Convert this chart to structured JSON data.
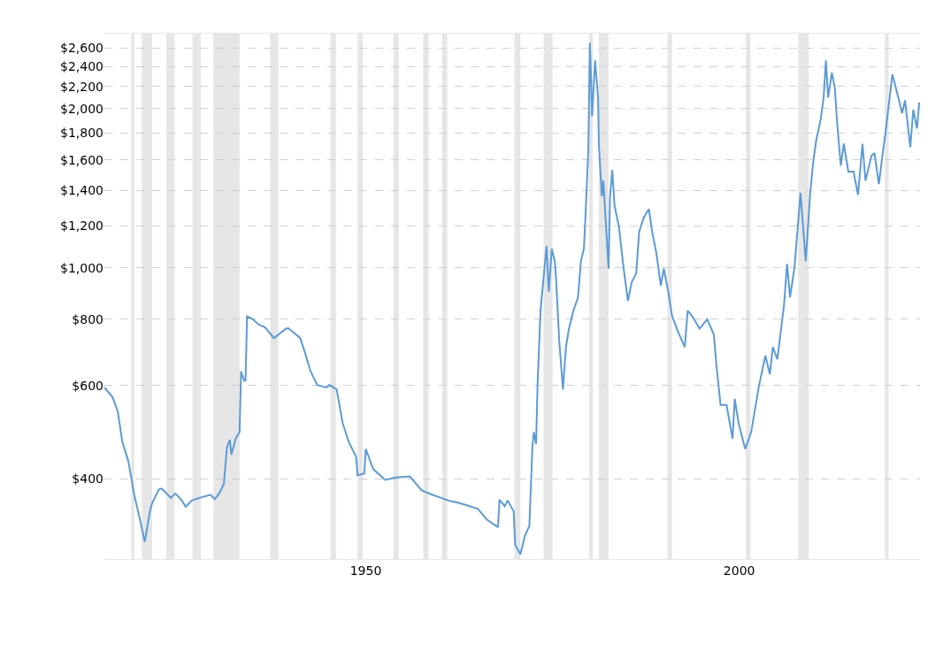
{
  "chart_data": {
    "type": "line",
    "x": [
      1915.0,
      1916.1,
      1916.8,
      1917.4,
      1918.2,
      1919.0,
      1919.8,
      1920.4,
      1921.1,
      1921.4,
      1922.3,
      1922.7,
      1923.9,
      1924.5,
      1925.3,
      1925.9,
      1926.7,
      1928.0,
      1929.2,
      1929.8,
      1930.4,
      1931.0,
      1931.4,
      1931.8,
      1932.0,
      1932.6,
      1933.1,
      1933.3,
      1933.7,
      1933.9,
      1934.1,
      1934.9,
      1935.7,
      1936.5,
      1937.7,
      1939.2,
      1939.6,
      1941.2,
      1941.8,
      1942.6,
      1943.5,
      1944.7,
      1945.1,
      1946.1,
      1946.9,
      1947.7,
      1948.7,
      1948.9,
      1949.8,
      1950.0,
      1951.0,
      1952.6,
      1954.0,
      1955.9,
      1957.5,
      1958.9,
      1961.3,
      1962.5,
      1965.0,
      1966.2,
      1967.7,
      1967.9,
      1968.6,
      1969.0,
      1969.8,
      1970.0,
      1970.7,
      1971.3,
      1971.9,
      1972.3,
      1972.5,
      1972.8,
      1973.0,
      1973.4,
      1974.2,
      1974.5,
      1974.9,
      1975.3,
      1975.5,
      1975.9,
      1976.4,
      1976.8,
      1977.2,
      1977.8,
      1978.4,
      1978.8,
      1979.2,
      1979.4,
      1979.8,
      1980.0,
      1980.3,
      1980.7,
      1981.1,
      1981.2,
      1981.6,
      1981.8,
      1982.1,
      1982.5,
      1982.7,
      1983.0,
      1983.3,
      1983.9,
      1984.5,
      1985.1,
      1985.6,
      1986.2,
      1986.6,
      1987.2,
      1987.9,
      1988.3,
      1988.9,
      1989.5,
      1989.9,
      1990.5,
      1991.0,
      1991.8,
      1992.7,
      1993.1,
      1993.7,
      1994.7,
      1995.7,
      1996.6,
      1996.9,
      1997.5,
      1998.3,
      1999.1,
      1999.4,
      1999.9,
      2000.8,
      2001.6,
      2002.6,
      2003.5,
      2004.1,
      2004.5,
      2005.1,
      2006.0,
      2006.4,
      2006.8,
      2007.4,
      2008.2,
      2008.9,
      2009.5,
      2009.9,
      2010.3,
      2010.9,
      2011.3,
      2011.6,
      2011.9,
      2012.4,
      2012.8,
      2013.1,
      2013.6,
      2014.0,
      2014.6,
      2015.3,
      2015.9,
      2016.5,
      2016.9,
      2017.7,
      2018.1,
      2018.7,
      2019.1,
      2019.6,
      2020.5,
      2021.2,
      2021.8,
      2022.2,
      2022.9,
      2023.3,
      2023.8,
      2024.1
    ],
    "series": [
      {
        "color": "#5b9bd5",
        "values": [
          595,
          570,
          535,
          470,
          432,
          373,
          333,
          304,
          347,
          360,
          382,
          383,
          368,
          375,
          365,
          354,
          364,
          369,
          373,
          366,
          376,
          391,
          458,
          474,
          444,
          477,
          490,
          638,
          613,
          613,
          810,
          800,
          781,
          773,
          737,
          766,
          770,
          738,
          696,
          638,
          601,
          595,
          601,
          590,
          510,
          470,
          440,
          406,
          409,
          455,
          417,
          398,
          402,
          404,
          380,
          373,
          363,
          360,
          351,
          335,
          324,
          365,
          355,
          364,
          347,
          300,
          288,
          312,
          326,
          458,
          490,
          465,
          605,
          833,
          1100,
          902,
          1087,
          1030,
          940,
          729,
          590,
          709,
          768,
          831,
          878,
          1030,
          1087,
          1244,
          1673,
          2660,
          1935,
          2465,
          2097,
          1716,
          1366,
          1462,
          1244,
          997,
          1366,
          1531,
          1312,
          1195,
          1003,
          867,
          940,
          976,
          1171,
          1244,
          1292,
          1179,
          1067,
          926,
          997,
          902,
          812,
          758,
          709,
          831,
          811,
          768,
          800,
          749,
          665,
          551,
          551,
          476,
          566,
          510,
          455,
          490,
          595,
          683,
          630,
          709,
          672,
          852,
          1018,
          880,
          1003,
          1386,
          1030,
          1386,
          1585,
          1739,
          1908,
          2097,
          2465,
          2097,
          2338,
          2185,
          1884,
          1560,
          1716,
          1520,
          1520,
          1375,
          1716,
          1462,
          1628,
          1648,
          1440,
          1602,
          1810,
          2320,
          2125,
          1960,
          2072,
          1691,
          1990,
          1834,
          2055
        ]
      }
    ],
    "xlim": [
      1915,
      2024.2
    ],
    "xticks": [
      1950,
      2000
    ],
    "ylim": [
      282,
      2770
    ],
    "log": true,
    "yticks": [
      {
        "value": 400,
        "label": "$400"
      },
      {
        "value": 600,
        "label": "$600"
      },
      {
        "value": 800,
        "label": "$800"
      },
      {
        "value": 1000,
        "label": "$1,000"
      },
      {
        "value": 1200,
        "label": "$1,200"
      },
      {
        "value": 1400,
        "label": "$1,400"
      },
      {
        "value": 1600,
        "label": "$1,600"
      },
      {
        "value": 1800,
        "label": "$1,800"
      },
      {
        "value": 2000,
        "label": "$2,000"
      },
      {
        "value": 2200,
        "label": "$2,200"
      },
      {
        "value": 2400,
        "label": "$2,400"
      },
      {
        "value": 2600,
        "label": "$2,600"
      }
    ],
    "grid": "y",
    "line_style": "solid",
    "marker": "none",
    "bands": [
      {
        "axis": "x",
        "from": 1918.6,
        "to": 1919.0,
        "color": "#e6e6e6"
      },
      {
        "axis": "x",
        "from": 1920.0,
        "to": 1921.4,
        "color": "#e6e6e6"
      },
      {
        "axis": "x",
        "from": 1923.3,
        "to": 1924.4,
        "color": "#e6e6e6"
      },
      {
        "axis": "x",
        "from": 1926.8,
        "to": 1927.9,
        "color": "#e6e6e6"
      },
      {
        "axis": "x",
        "from": 1929.6,
        "to": 1933.1,
        "color": "#e6e6e6"
      },
      {
        "axis": "x",
        "from": 1937.2,
        "to": 1938.3,
        "color": "#e6e6e6"
      },
      {
        "axis": "x",
        "from": 1945.3,
        "to": 1946.0,
        "color": "#e6e6e6"
      },
      {
        "axis": "x",
        "from": 1948.9,
        "to": 1949.6,
        "color": "#e6e6e6"
      },
      {
        "axis": "x",
        "from": 1953.7,
        "to": 1954.4,
        "color": "#e6e6e6"
      },
      {
        "axis": "x",
        "from": 1957.7,
        "to": 1958.4,
        "color": "#e6e6e6"
      },
      {
        "axis": "x",
        "from": 1960.2,
        "to": 1960.9,
        "color": "#e6e6e6"
      },
      {
        "axis": "x",
        "from": 1969.9,
        "to": 1970.7,
        "color": "#e6e6e6"
      },
      {
        "axis": "x",
        "from": 1973.8,
        "to": 1975.0,
        "color": "#e6e6e6"
      },
      {
        "axis": "x",
        "from": 1979.9,
        "to": 1980.4,
        "color": "#e6e6e6"
      },
      {
        "axis": "x",
        "from": 1981.2,
        "to": 1982.5,
        "color": "#e6e6e6"
      },
      {
        "axis": "x",
        "from": 1990.4,
        "to": 1991.0,
        "color": "#e6e6e6"
      },
      {
        "axis": "x",
        "from": 2000.9,
        "to": 2001.5,
        "color": "#e6e6e6"
      },
      {
        "axis": "x",
        "from": 2007.9,
        "to": 2009.3,
        "color": "#e6e6e6"
      },
      {
        "axis": "x",
        "from": 2019.5,
        "to": 2020.0,
        "color": "#e6e6e6"
      }
    ]
  }
}
